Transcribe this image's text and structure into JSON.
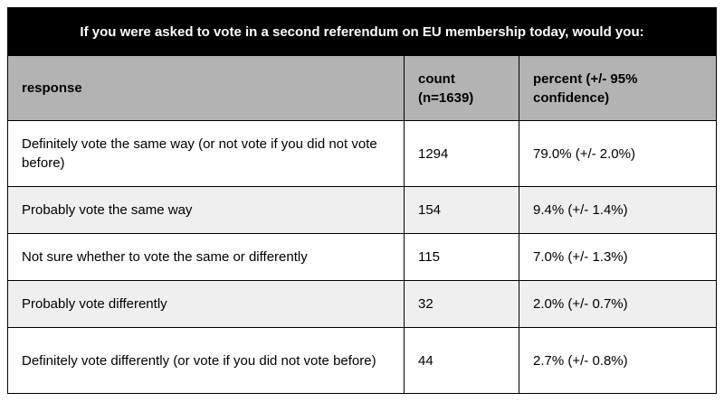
{
  "chart_data": {
    "type": "table",
    "title": "If you were asked to vote in a second referendum on EU membership today, would you:",
    "columns": [
      "response",
      "count (n=1639)",
      "percent (+/- 95% confidence)"
    ],
    "rows": [
      {
        "response": "Definitely vote the same way (or not vote if you did not vote before)",
        "count": "1294",
        "percent": "79.0% (+/- 2.0%)"
      },
      {
        "response": "Probably vote the same way",
        "count": "154",
        "percent": "9.4% (+/- 1.4%)"
      },
      {
        "response": "Not sure whether to vote the same or differently",
        "count": "115",
        "percent": "7.0% (+/- 1.3%)"
      },
      {
        "response": "Probably vote differently",
        "count": "32",
        "percent": "2.0% (+/- 0.7%)"
      },
      {
        "response": "Definitely vote differently (or vote if you did not vote before)",
        "count": "44",
        "percent": "2.7% (+/- 0.8%)"
      }
    ]
  },
  "colors": {
    "title_bg": "#000000",
    "title_text": "#ffffff",
    "header_bg": "#b3b3b3",
    "row_alt_bg": "#efefef",
    "border": "#000000"
  }
}
